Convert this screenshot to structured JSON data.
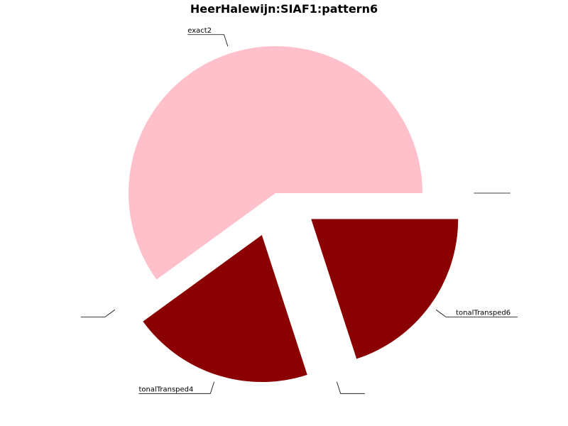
{
  "chart_data": {
    "type": "pie",
    "title": "HeerHalewijn:SIAF1:pattern6",
    "slices": [
      {
        "label": "exact2",
        "value": 60,
        "color": "#ffc0cb",
        "exploded": false
      },
      {
        "label": "",
        "value": 0,
        "color": "#ffc0cb",
        "exploded": true
      },
      {
        "label": "tonalTransped4",
        "value": 20,
        "color": "#8b0000",
        "exploded": true
      },
      {
        "label": "",
        "value": 0,
        "color": "#8b0000",
        "exploded": true
      },
      {
        "label": "tonalTransped6",
        "value": 20,
        "color": "#8b0000",
        "exploded": true
      },
      {
        "label": "",
        "value": 0,
        "color": "#8b0000",
        "exploded": true
      }
    ],
    "start_angle": "3 o'clock",
    "direction": "counterclockwise",
    "legend": "none"
  }
}
